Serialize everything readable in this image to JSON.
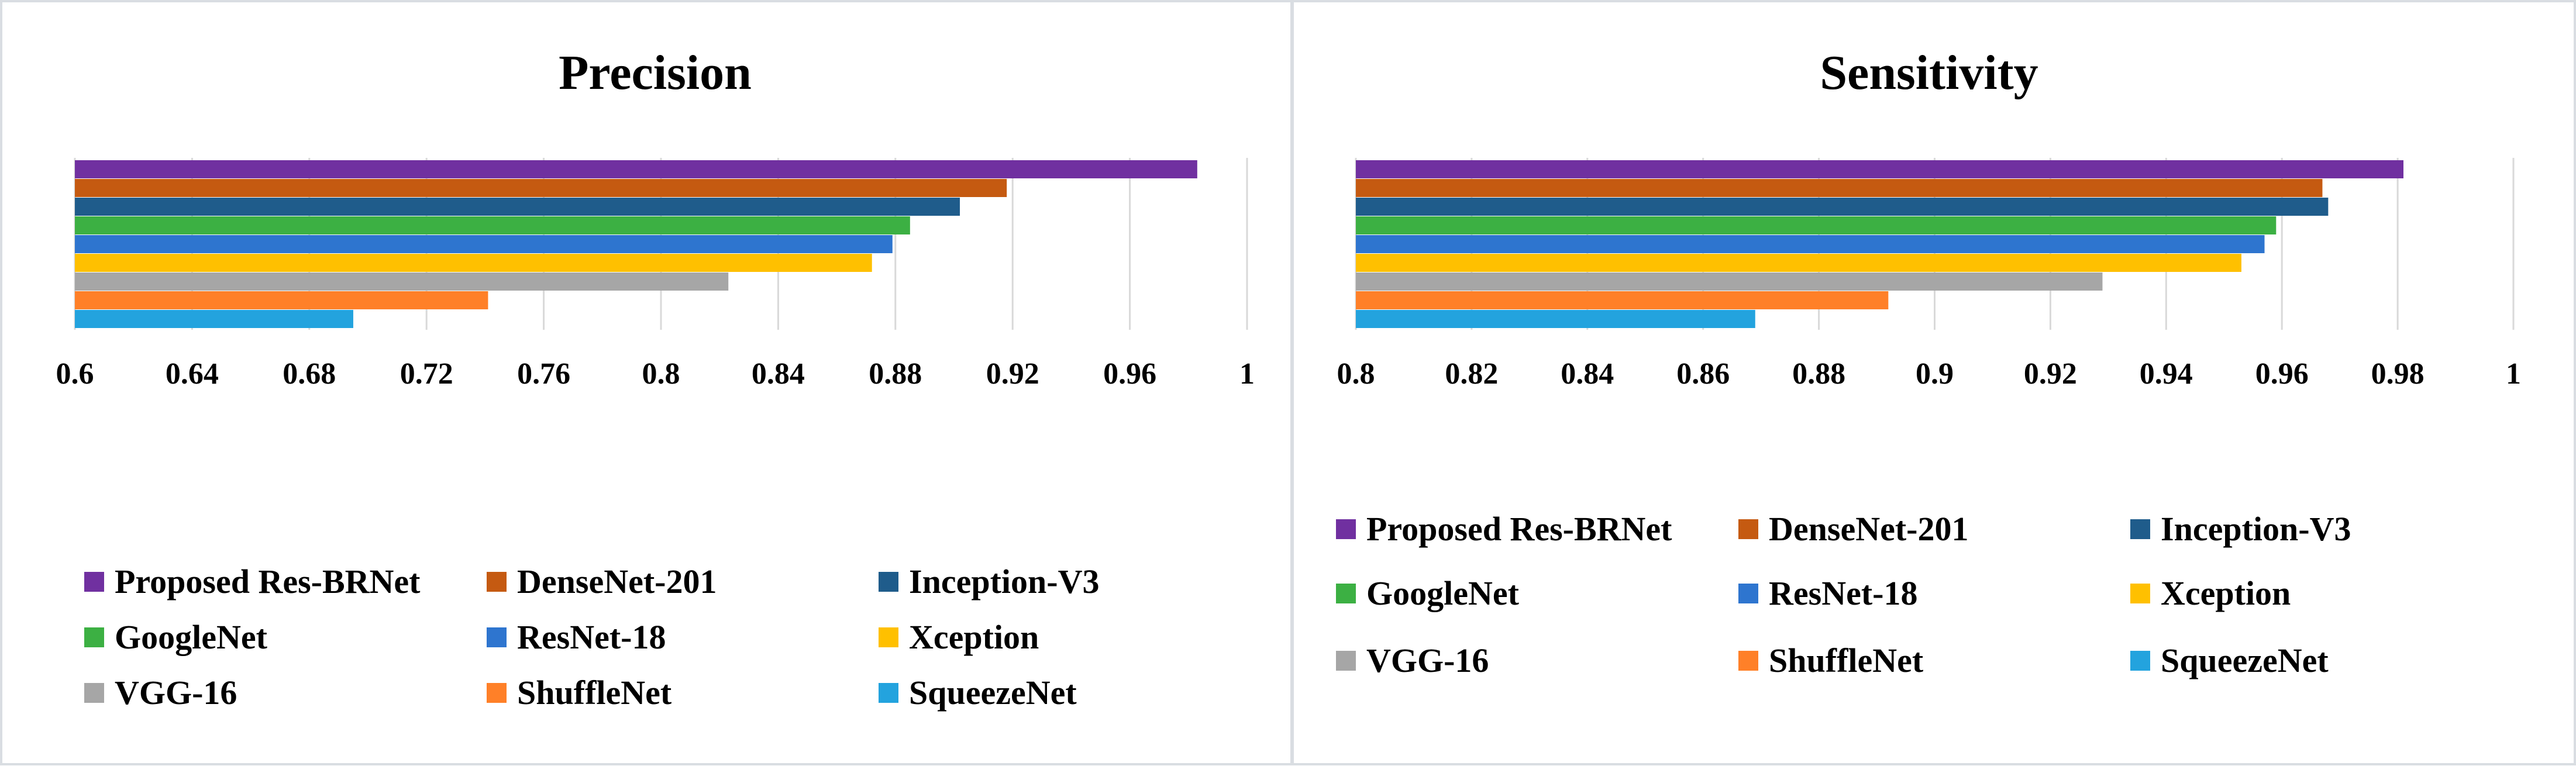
{
  "chart_data": [
    {
      "type": "bar",
      "orientation": "horizontal",
      "title": "Precision",
      "xlim": [
        0.6,
        1
      ],
      "ticks": [
        "0.6",
        "0.64",
        "0.68",
        "0.72",
        "0.76",
        "0.8",
        "0.84",
        "0.88",
        "0.92",
        "0.96",
        "1"
      ],
      "grid": true,
      "legend_position": "bottom",
      "series": [
        {
          "name": "Proposed Res-BRNet",
          "value": 0.983,
          "color": "#7030a0"
        },
        {
          "name": "DenseNet-201",
          "value": 0.918,
          "color": "#c55a11"
        },
        {
          "name": "Inception-V3",
          "value": 0.902,
          "color": "#1f5c8b"
        },
        {
          "name": "GoogleNet",
          "value": 0.885,
          "color": "#3cb043"
        },
        {
          "name": "ResNet-18",
          "value": 0.879,
          "color": "#2e75cf"
        },
        {
          "name": "Xception",
          "value": 0.872,
          "color": "#ffc000"
        },
        {
          "name": "VGG-16",
          "value": 0.823,
          "color": "#a6a6a6"
        },
        {
          "name": "ShuffleNet",
          "value": 0.741,
          "color": "#ff8028"
        },
        {
          "name": "SqueezeNet",
          "value": 0.695,
          "color": "#23a3de"
        }
      ]
    },
    {
      "type": "bar",
      "orientation": "horizontal",
      "title": "Sensitivity",
      "xlim": [
        0.8,
        1
      ],
      "ticks": [
        "0.8",
        "0.82",
        "0.84",
        "0.86",
        "0.88",
        "0.9",
        "0.92",
        "0.94",
        "0.96",
        "0.98",
        "1"
      ],
      "grid": true,
      "legend_position": "bottom",
      "series": [
        {
          "name": "Proposed Res-BRNet",
          "value": 0.981,
          "color": "#7030a0"
        },
        {
          "name": "DenseNet-201",
          "value": 0.967,
          "color": "#c55a11"
        },
        {
          "name": "Inception-V3",
          "value": 0.968,
          "color": "#1f5c8b"
        },
        {
          "name": "GoogleNet",
          "value": 0.959,
          "color": "#3cb043"
        },
        {
          "name": "ResNet-18",
          "value": 0.957,
          "color": "#2e75cf"
        },
        {
          "name": "Xception",
          "value": 0.953,
          "color": "#ffc000"
        },
        {
          "name": "VGG-16",
          "value": 0.929,
          "color": "#a6a6a6"
        },
        {
          "name": "ShuffleNet",
          "value": 0.892,
          "color": "#ff8028"
        },
        {
          "name": "SqueezeNet",
          "value": 0.869,
          "color": "#23a3de"
        }
      ]
    }
  ]
}
